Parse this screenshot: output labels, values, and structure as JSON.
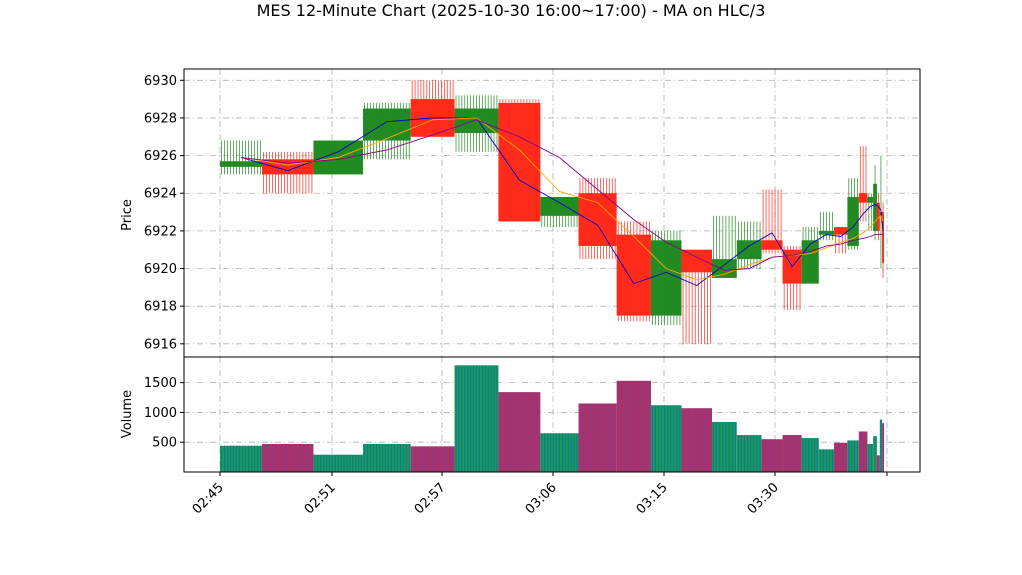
{
  "chart_data": [
    {
      "type": "candlestick",
      "title": "MES 12-Minute Chart (2025-10-30 16:00~17:00) - MA on HLC/3",
      "ylabel": "Price",
      "ylim": [
        6915.3,
        6930.6
      ],
      "yticks": [
        6916,
        6918,
        6920,
        6922,
        6924,
        6926,
        6928,
        6930
      ],
      "grid": true,
      "x_tick_labels": [
        "02:45",
        "02:51",
        "02:57",
        "03:06",
        "03:15",
        "03:30"
      ],
      "up_color": "#228b22",
      "down_color": "#ff2a1a",
      "candles": [
        {
          "w": 2.2,
          "o": 6925.4,
          "h": 6926.8,
          "l": 6925.0,
          "c": 6925.7
        },
        {
          "w": 2.7,
          "o": 6925.8,
          "h": 6926.2,
          "l": 6924.0,
          "c": 6925.0
        },
        {
          "w": 2.6,
          "o": 6925.0,
          "h": 6926.8,
          "l": 6925.0,
          "c": 6926.8
        },
        {
          "w": 2.5,
          "o": 6926.8,
          "h": 6928.8,
          "l": 6925.8,
          "c": 6928.5
        },
        {
          "w": 2.3,
          "o": 6929.0,
          "h": 6930.0,
          "l": 6927.0,
          "c": 6927.0
        },
        {
          "w": 2.3,
          "o": 6927.2,
          "h": 6929.2,
          "l": 6926.2,
          "c": 6928.5
        },
        {
          "w": 2.2,
          "o": 6928.8,
          "h": 6929.0,
          "l": 6922.5,
          "c": 6922.5
        },
        {
          "w": 2.0,
          "o": 6922.8,
          "h": 6923.8,
          "l": 6922.2,
          "c": 6923.8
        },
        {
          "w": 2.0,
          "o": 6924.0,
          "h": 6924.8,
          "l": 6920.5,
          "c": 6921.2
        },
        {
          "w": 1.8,
          "o": 6921.8,
          "h": 6922.5,
          "l": 6917.2,
          "c": 6917.5
        },
        {
          "w": 1.6,
          "o": 6917.5,
          "h": 6922.0,
          "l": 6917.0,
          "c": 6921.5
        },
        {
          "w": 1.6,
          "o": 6921.0,
          "h": 6921.0,
          "l": 6916.0,
          "c": 6919.8
        },
        {
          "w": 1.3,
          "o": 6919.5,
          "h": 6922.8,
          "l": 6919.5,
          "c": 6920.5
        },
        {
          "w": 1.3,
          "o": 6920.5,
          "h": 6922.5,
          "l": 6920.0,
          "c": 6921.5
        },
        {
          "w": 1.1,
          "o": 6921.5,
          "h": 6924.2,
          "l": 6920.8,
          "c": 6921.0
        },
        {
          "w": 1.0,
          "o": 6921.0,
          "h": 6921.2,
          "l": 6917.8,
          "c": 6919.2
        },
        {
          "w": 0.9,
          "o": 6919.2,
          "h": 6922.2,
          "l": 6919.2,
          "c": 6921.5
        },
        {
          "w": 0.8,
          "o": 6921.8,
          "h": 6923.0,
          "l": 6921.5,
          "c": 6922.0
        },
        {
          "w": 0.7,
          "o": 6922.2,
          "h": 6922.2,
          "l": 6920.8,
          "c": 6921.8
        },
        {
          "w": 0.6,
          "o": 6921.2,
          "h": 6924.8,
          "l": 6921.0,
          "c": 6923.8
        },
        {
          "w": 0.45,
          "o": 6924.0,
          "h": 6926.5,
          "l": 6922.5,
          "c": 6923.5
        },
        {
          "w": 0.3,
          "o": 6923.5,
          "h": 6924.0,
          "l": 6922.0,
          "c": 6923.8
        },
        {
          "w": 0.2,
          "o": 6922.0,
          "h": 6925.5,
          "l": 6921.5,
          "c": 6924.5
        },
        {
          "w": 0.15,
          "o": 6923.5,
          "h": 6924.0,
          "l": 6921.5,
          "c": 6922.0
        },
        {
          "w": 0.12,
          "o": 6922.8,
          "h": 6926.0,
          "l": 6920.0,
          "c": 6923.0
        },
        {
          "w": 0.1,
          "o": 6923.0,
          "h": 6923.5,
          "l": 6919.5,
          "c": 6920.3
        }
      ],
      "series": [
        {
          "color": "#0000cc",
          "values": [
            6925.9,
            6925.2,
            6926.2,
            6927.8,
            6928.0,
            6928.0,
            6924.7,
            6923.5,
            6922.3,
            6919.2,
            6919.8,
            6919.1,
            6920.2,
            6921.2,
            6921.9,
            6920.1,
            6921.3,
            6921.8,
            6921.7,
            6922.2,
            6922.9,
            6923.3,
            6923.4,
            6923.3,
            6923.1,
            6922.0
          ]
        },
        {
          "color": "#ffa500",
          "values": [
            6925.9,
            6925.5,
            6925.9,
            6926.9,
            6927.9,
            6928.0,
            6926.3,
            6924.1,
            6923.5,
            6921.7,
            6920.0,
            6919.4,
            6919.7,
            6920.2,
            6920.6,
            6920.7,
            6920.8,
            6921.1,
            6921.4,
            6921.6,
            6921.9,
            6922.2,
            6922.5,
            6922.7,
            6922.8,
            6922.5
          ]
        },
        {
          "color": "#8b008b",
          "values": [
            6925.9,
            6925.6,
            6925.8,
            6926.3,
            6927.1,
            6927.9,
            6927.0,
            6925.9,
            6924.2,
            6922.6,
            6921.4,
            6920.6,
            6919.9,
            6920.0,
            6920.6,
            6920.7,
            6920.9,
            6921.2,
            6921.3,
            6921.5,
            6921.6,
            6921.7,
            6921.8,
            6921.8,
            6921.8,
            6921.8
          ]
        }
      ]
    },
    {
      "type": "bar",
      "ylabel": "Volume",
      "ylim": [
        0,
        1930
      ],
      "yticks": [
        500,
        1000,
        1500
      ],
      "grid": true,
      "values": [
        440,
        470,
        290,
        470,
        430,
        1790,
        1340,
        650,
        1150,
        1530,
        1120,
        1070,
        840,
        620,
        550,
        620,
        570,
        380,
        490,
        530,
        680,
        470,
        600,
        280,
        880,
        820
      ]
    }
  ]
}
